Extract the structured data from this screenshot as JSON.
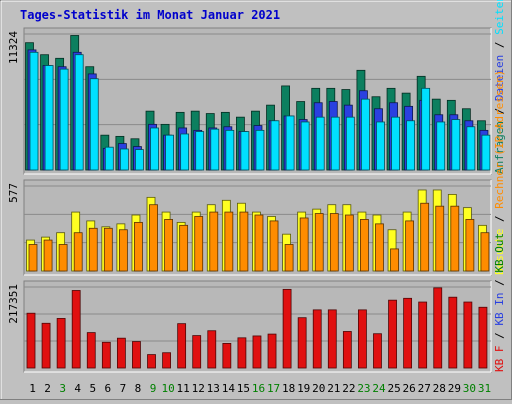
{
  "chart_data": {
    "type": "bar",
    "title": "Tages-Statistik im Monat Januar 2021",
    "categories": [
      "1",
      "2",
      "3",
      "4",
      "5",
      "6",
      "7",
      "8",
      "9",
      "10",
      "11",
      "12",
      "13",
      "14",
      "15",
      "16",
      "17",
      "18",
      "19",
      "20",
      "21",
      "22",
      "23",
      "24",
      "25",
      "26",
      "27",
      "28",
      "29",
      "30",
      "31"
    ],
    "weekend_days": [
      "3",
      "9",
      "10",
      "16",
      "17",
      "23",
      "24",
      "30",
      "31"
    ],
    "colors": {
      "title": "#0000cc",
      "background": "#c0c0c0",
      "plot_background": "#b8b8b8",
      "weekday_label": "#000000",
      "weekend_label": "#008000",
      "anfragen": "#0c7f5f",
      "dateien": "#2a40e0",
      "seiten": "#00e0ff",
      "besuche": "#ffff22",
      "rechner": "#ff8c00",
      "kb_f": "#e01010"
    },
    "panels": [
      {
        "id": "hits",
        "max_label": "11324",
        "max_value": 11324,
        "legend": [
          {
            "text": "Anfragen",
            "color": "#0c7f5f"
          },
          {
            "text": " / ",
            "color": "#000000"
          },
          {
            "text": "Dateien",
            "color": "#2a40e0"
          },
          {
            "text": " / ",
            "color": "#000000"
          },
          {
            "text": "Seiten",
            "color": "#00e0ff"
          }
        ],
        "series": [
          {
            "name": "Anfragen",
            "values": [
              10600,
              9600,
              9300,
              11200,
              8600,
              2900,
              2800,
              2600,
              4900,
              3800,
              4800,
              4900,
              4700,
              4800,
              4400,
              4900,
              5400,
              7000,
              5700,
              6800,
              6800,
              6700,
              8300,
              6100,
              6800,
              6400,
              7800,
              5900,
              5800,
              5100,
              4100
            ]
          },
          {
            "name": "Dateien",
            "values": [
              10000,
              8700,
              8600,
              9800,
              8000,
              1800,
              2200,
              1950,
              3800,
              2900,
              3500,
              3300,
              3500,
              3600,
              3200,
              3700,
              4100,
              4500,
              4200,
              5600,
              5700,
              5400,
              6600,
              5100,
              5600,
              5300,
              5800,
              4600,
              4600,
              4100,
              3300
            ]
          },
          {
            "name": "Seiten",
            "values": [
              9800,
              8700,
              8400,
              9600,
              7600,
              1900,
              1750,
              1700,
              3500,
              2900,
              3000,
              3200,
              3400,
              3300,
              3200,
              3300,
              4100,
              4500,
              4000,
              4400,
              4400,
              4400,
              5900,
              4000,
              4400,
              4100,
              6800,
              4000,
              4200,
              3600,
              2900
            ]
          }
        ]
      },
      {
        "id": "visits",
        "max_label": "577",
        "max_value": 577,
        "legend": [
          {
            "text": "Besuche",
            "color": "#ffff22"
          },
          {
            "text": " / ",
            "color": "#000000"
          },
          {
            "text": "Rechner (IP-Adressen)",
            "color": "#ff8c00"
          }
        ],
        "series": [
          {
            "name": "Besuche",
            "values": [
              210,
              230,
              260,
              400,
              340,
              300,
              320,
              380,
              500,
              400,
              330,
              400,
              450,
              480,
              460,
              400,
              370,
              250,
              400,
              420,
              450,
              450,
              400,
              380,
              280,
              400,
              550,
              550,
              520,
              430,
              310
            ]
          },
          {
            "name": "Rechner (IP-Adressen)",
            "values": [
              180,
              210,
              180,
              260,
              290,
              290,
              280,
              330,
              450,
              350,
              310,
              370,
              400,
              400,
              400,
              380,
              340,
              180,
              360,
              390,
              390,
              380,
              350,
              320,
              150,
              340,
              460,
              440,
              440,
              350,
              260
            ]
          }
        ]
      },
      {
        "id": "traffic",
        "max_label": "217351",
        "max_value": 217351,
        "legend": [
          {
            "text": "KB F",
            "color": "#e01010"
          },
          {
            "text": " / ",
            "color": "#000000"
          },
          {
            "text": "KB In",
            "color": "#2a40e0"
          },
          {
            "text": " / ",
            "color": "#000000"
          },
          {
            "text": "KB Out",
            "color": "#008000"
          }
        ],
        "series": [
          {
            "name": "KB F",
            "values": [
              147000,
              120000,
              133000,
              208000,
              95000,
              69000,
              80000,
              71000,
              36000,
              41000,
              119000,
              87000,
              100000,
              66000,
              81000,
              86000,
              91000,
              211000,
              135000,
              156000,
              156000,
              98000,
              156000,
              92000,
              182000,
              187000,
              177000,
              215000,
              190000,
              177000,
              163000
            ]
          }
        ]
      }
    ]
  }
}
